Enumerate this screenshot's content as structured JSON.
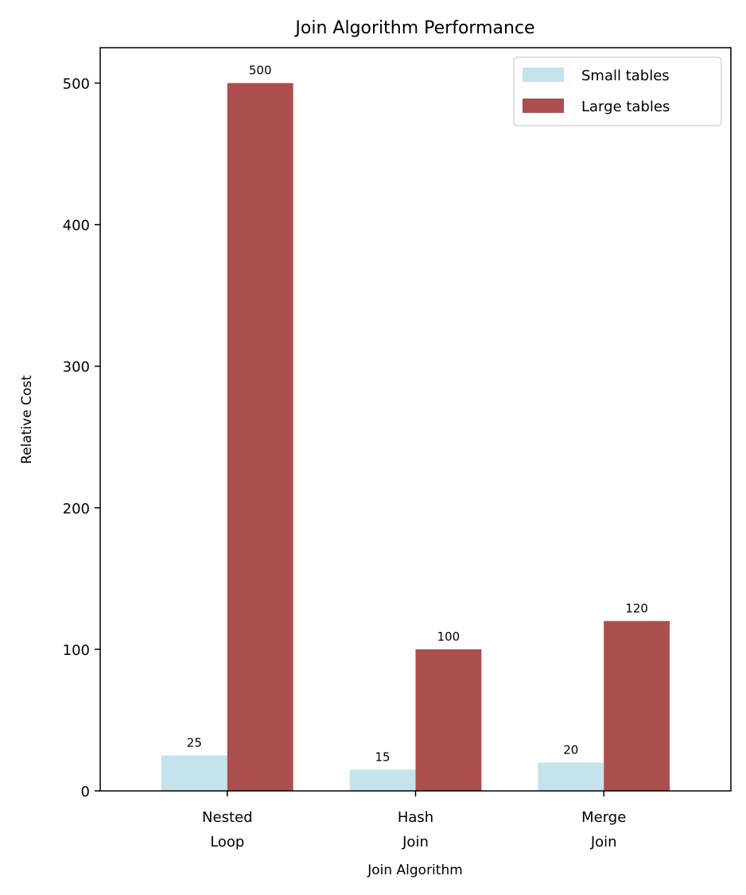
{
  "chart_data": {
    "type": "bar",
    "title": "Join Algorithm Performance",
    "xlabel": "Join Algorithm",
    "ylabel": "Relative Cost",
    "categories": [
      [
        "Nested",
        "Loop"
      ],
      [
        "Hash",
        "Join"
      ],
      [
        "Merge",
        "Join"
      ]
    ],
    "series": [
      {
        "name": "Small tables",
        "values": [
          25,
          15,
          20
        ],
        "color": "#c5e3ec"
      },
      {
        "name": "Large tables",
        "values": [
          500,
          100,
          120
        ],
        "color": "#ab4e4e"
      }
    ],
    "ylim": [
      0,
      525
    ],
    "yticks": [
      0,
      100,
      200,
      300,
      400,
      500
    ],
    "grid": false,
    "legend_position": "top-right"
  }
}
